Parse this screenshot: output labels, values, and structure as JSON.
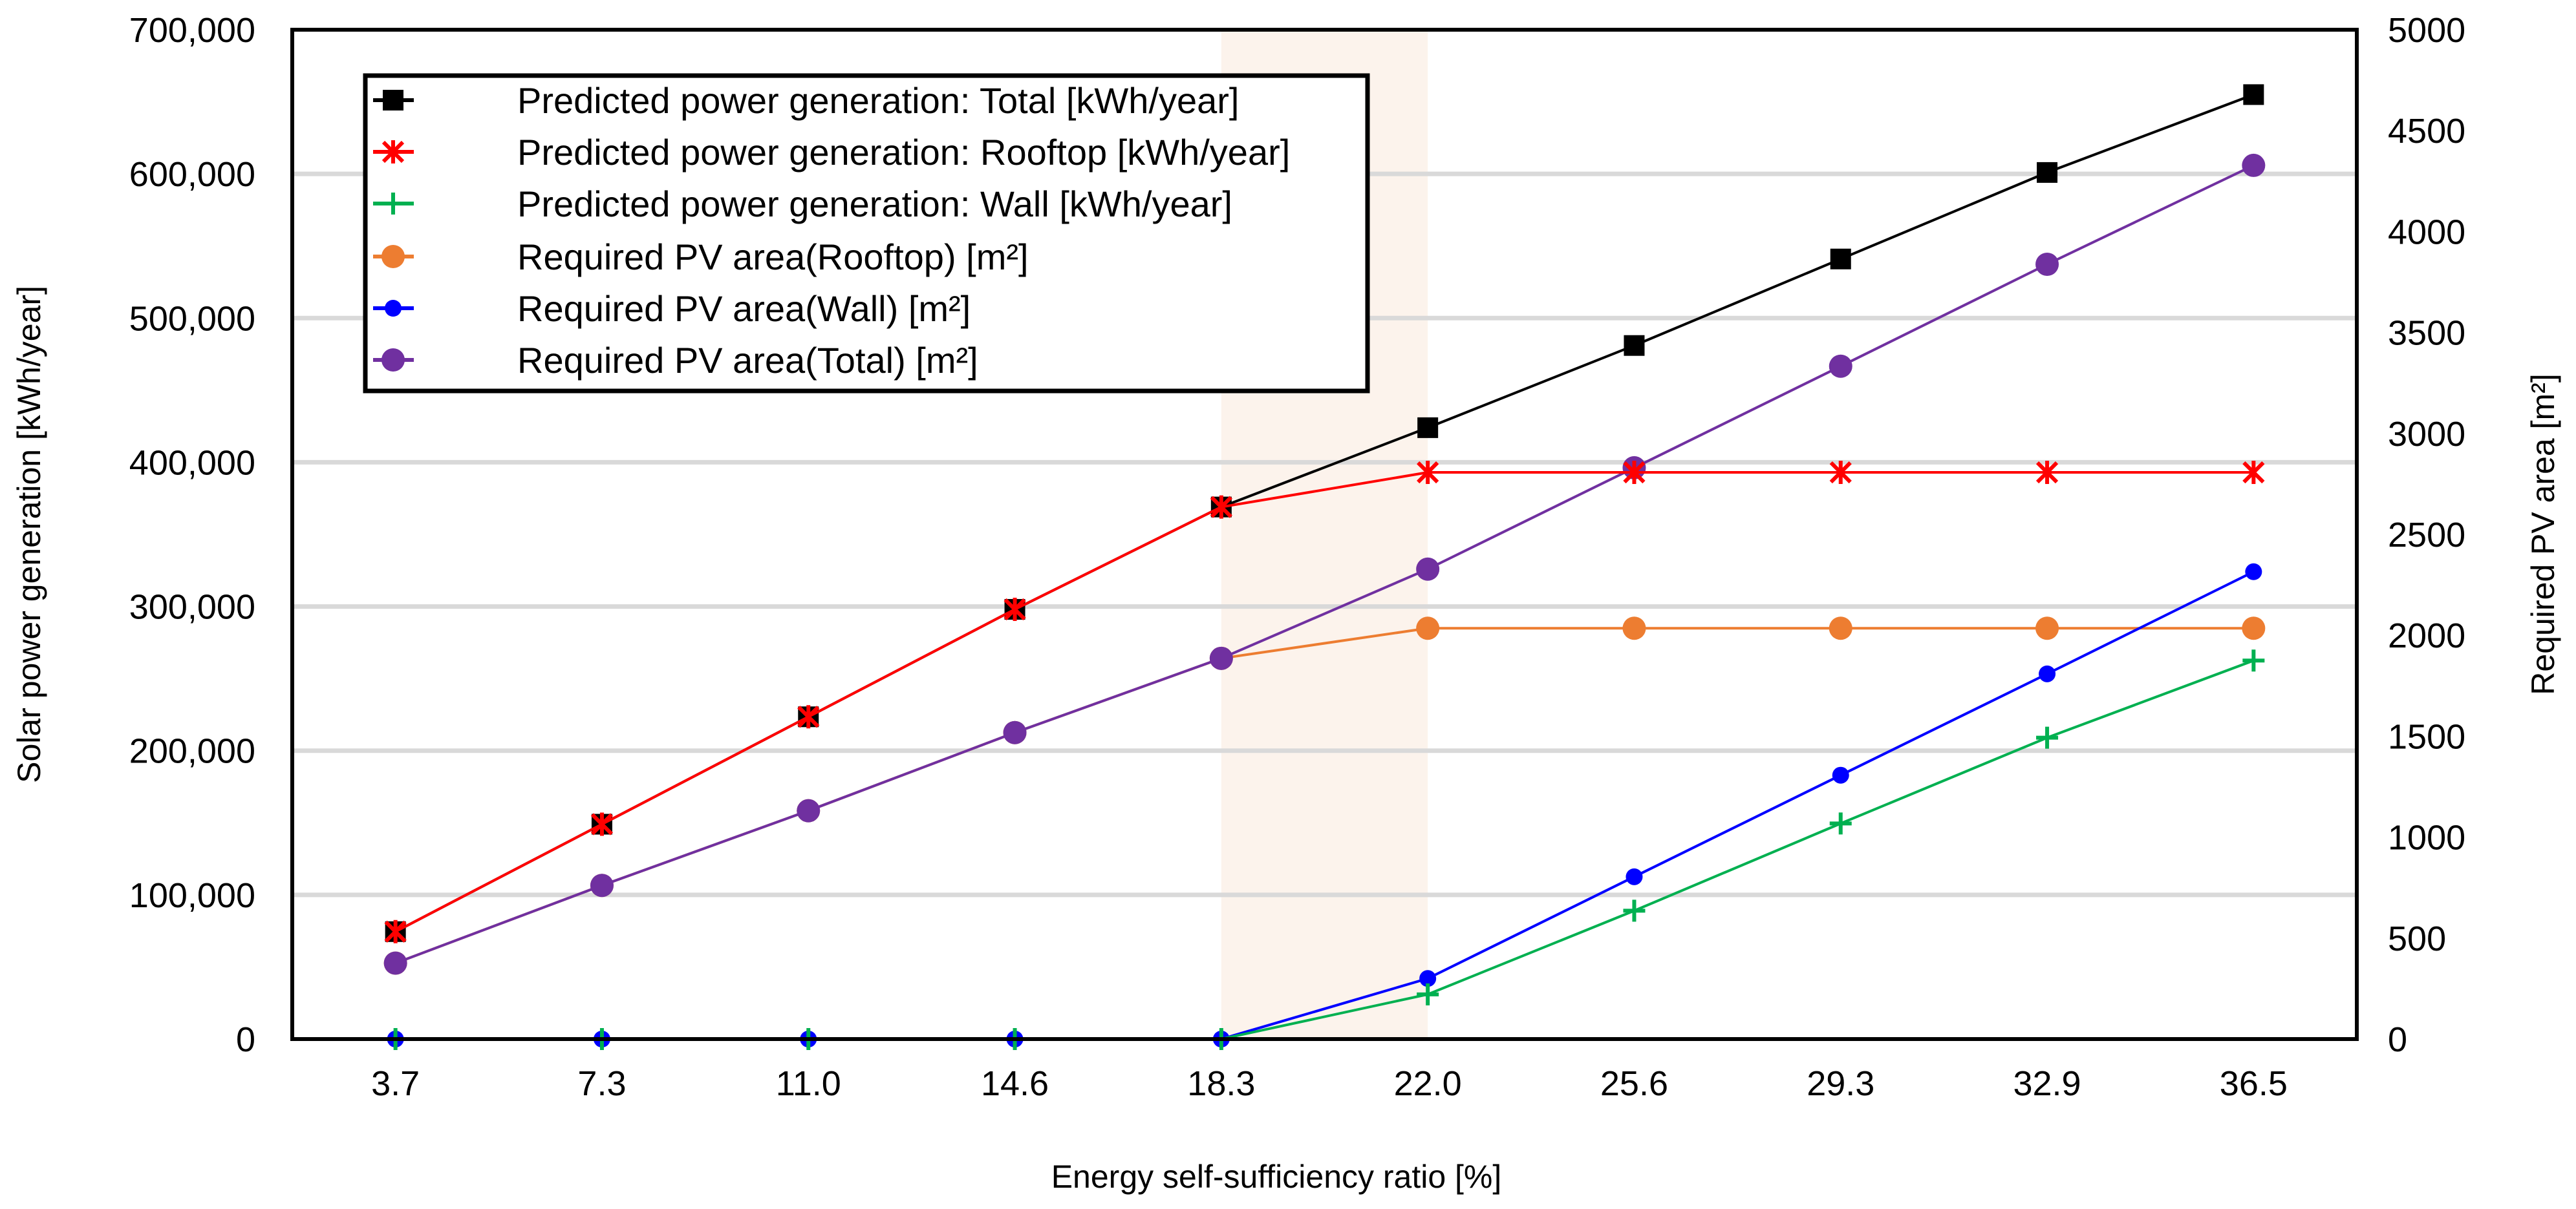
{
  "chart_data": {
    "type": "line",
    "title": "",
    "xlabel": "Energy self-sufficiency ratio [%]",
    "ylabel": "Solar power generation [kWh/year]",
    "y2label": "Required PV area [m²]",
    "categories": [
      "3.7",
      "7.3",
      "11.0",
      "14.6",
      "18.3",
      "22.0",
      "25.6",
      "29.3",
      "32.9",
      "36.5"
    ],
    "ylim": [
      0,
      700000
    ],
    "y_ticks": [
      0,
      100000,
      200000,
      300000,
      400000,
      500000,
      600000,
      700000
    ],
    "y_tick_labels": [
      "0",
      "100,000",
      "200,000",
      "300,000",
      "400,000",
      "500,000",
      "600,000",
      "700,000"
    ],
    "y2lim": [
      0,
      5000
    ],
    "y2_ticks": [
      0,
      500,
      1000,
      1500,
      2000,
      2500,
      3000,
      3500,
      4000,
      4500,
      5000
    ],
    "y2_tick_labels": [
      "0",
      "500",
      "1000",
      "1500",
      "2000",
      "2500",
      "3000",
      "3500",
      "4000",
      "4500",
      "5000"
    ],
    "grid": true,
    "legend_position": "top-left",
    "highlight_range": [
      "18.3",
      "22.0"
    ],
    "highlight_color": "#fcf3ec",
    "series": [
      {
        "name": "Predicted power generation: Total [kWh/year]",
        "axis": "left",
        "color": "#000000",
        "marker": "square",
        "values": [
          74500,
          149000,
          223500,
          298000,
          369000,
          424000,
          481000,
          541000,
          601000,
          655000
        ]
      },
      {
        "name": "Predicted power generation: Rooftop [kWh/year]",
        "axis": "left",
        "color": "#ff0000",
        "marker": "star",
        "values": [
          74500,
          149000,
          223500,
          298000,
          369000,
          393000,
          393000,
          393000,
          393000,
          393000
        ]
      },
      {
        "name": "Predicted power generation: Wall [kWh/year]",
        "axis": "left",
        "color": "#00b050",
        "marker": "plus",
        "values": [
          0,
          0,
          0,
          0,
          0,
          31000,
          89000,
          149500,
          209000,
          262500
        ]
      },
      {
        "name": "Required PV area(Rooftop)  [m²]",
        "axis": "right",
        "color": "#ed7d31",
        "marker": "circle",
        "values": [
          376,
          761,
          1131,
          1518,
          1886,
          2035,
          2035,
          2035,
          2035,
          2035
        ]
      },
      {
        "name": "Required PV area(Wall)  [m²]",
        "axis": "right",
        "color": "#0000ff",
        "marker": "circle-small",
        "values": [
          0,
          0,
          0,
          0,
          0,
          300,
          804,
          1307,
          1809,
          2315
        ]
      },
      {
        "name": "Required PV area(Total) [m²]",
        "axis": "right",
        "color": "#7030a0",
        "marker": "circle",
        "values": [
          376,
          761,
          1131,
          1518,
          1886,
          2328,
          2830,
          3333,
          3838,
          4328
        ]
      }
    ]
  }
}
